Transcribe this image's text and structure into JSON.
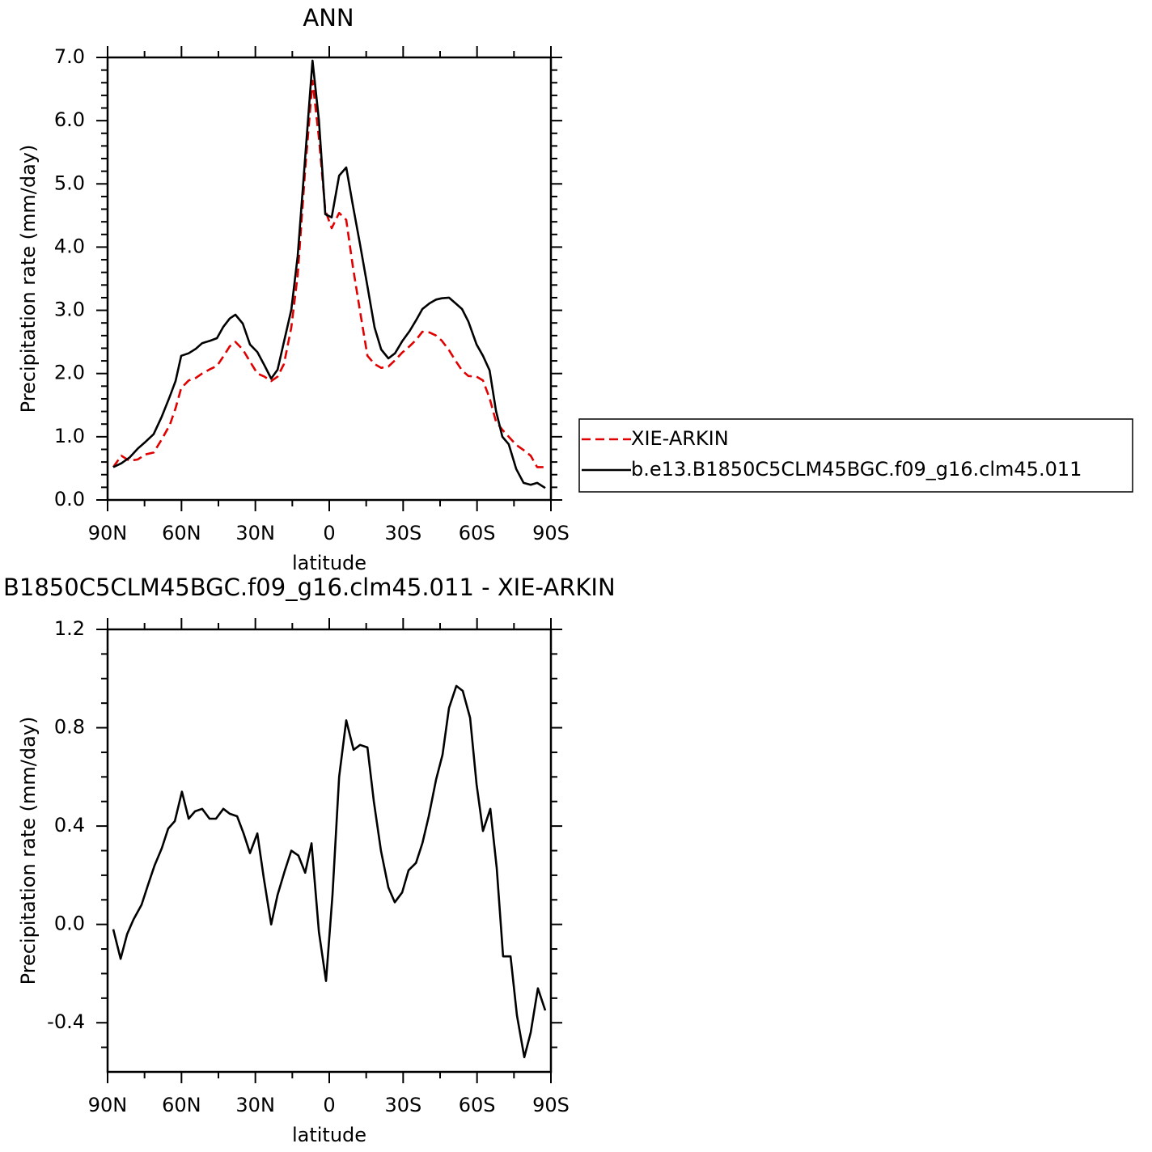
{
  "chart_data": [
    {
      "type": "line",
      "title": "ANN",
      "xlabel": "latitude",
      "ylabel": "Precipitation rate (mm/day)",
      "x": [
        87.7,
        84.4,
        81.1,
        77.8,
        74.6,
        71.3,
        68.0,
        64.7,
        62.4,
        60.1,
        57.1,
        54.2,
        51.6,
        48.3,
        45.6,
        43.0,
        40.4,
        38.1,
        35.1,
        32.2,
        29.2,
        26.3,
        23.6,
        21.0,
        18.4,
        15.4,
        12.8,
        9.8,
        6.8,
        4.2,
        1.6,
        -1.0,
        -4.0,
        -6.9,
        -9.6,
        -12.5,
        -15.5,
        -18.4,
        -21.1,
        -24.0,
        -26.7,
        -29.6,
        -32.6,
        -35.2,
        -37.8,
        -40.7,
        -43.4,
        -45.7,
        -48.6,
        -51.3,
        -53.9,
        -56.5,
        -59.8,
        -62.4,
        -65.1,
        -67.7,
        -70.3,
        -72.9,
        -75.9,
        -78.9,
        -81.8,
        -84.4,
        -87.7
      ],
      "series": [
        {
          "name": "XIE-ARKIN",
          "color": "#e00000",
          "dashed": true,
          "values": [
            0.52,
            0.7,
            0.62,
            0.64,
            0.72,
            0.75,
            0.96,
            1.19,
            1.45,
            1.77,
            1.89,
            1.93,
            2.0,
            2.07,
            2.12,
            2.27,
            2.43,
            2.5,
            2.38,
            2.19,
            2.0,
            1.95,
            1.88,
            1.95,
            2.15,
            2.73,
            3.56,
            5.22,
            6.63,
            5.73,
            4.58,
            4.3,
            4.54,
            4.43,
            3.69,
            2.98,
            2.28,
            2.15,
            2.09,
            2.11,
            2.21,
            2.33,
            2.43,
            2.53,
            2.66,
            2.65,
            2.6,
            2.52,
            2.37,
            2.2,
            2.05,
            1.96,
            1.95,
            1.89,
            1.61,
            1.24,
            1.11,
            1.0,
            0.87,
            0.79,
            0.7,
            0.52,
            0.52
          ]
        },
        {
          "name": "b.e13.B1850C5CLM45BGC.f09_g16.clm45.011",
          "color": "#000000",
          "dashed": false,
          "values": [
            0.52,
            0.58,
            0.67,
            0.81,
            0.92,
            1.04,
            1.32,
            1.64,
            1.88,
            2.28,
            2.32,
            2.39,
            2.48,
            2.52,
            2.56,
            2.74,
            2.87,
            2.93,
            2.79,
            2.46,
            2.34,
            2.13,
            1.92,
            2.06,
            2.5,
            3.01,
            3.86,
            5.41,
            6.95,
            6.01,
            4.52,
            4.47,
            5.13,
            5.26,
            4.66,
            4.04,
            3.38,
            2.73,
            2.38,
            2.24,
            2.32,
            2.51,
            2.67,
            2.84,
            3.02,
            3.11,
            3.17,
            3.19,
            3.2,
            3.11,
            3.02,
            2.82,
            2.46,
            2.28,
            2.05,
            1.41,
            1.0,
            0.88,
            0.49,
            0.27,
            0.24,
            0.27,
            0.19
          ]
        }
      ],
      "xlim": [
        90,
        -90
      ],
      "xticks": [
        {
          "value": 90,
          "label": "90N"
        },
        {
          "value": 60,
          "label": "60N"
        },
        {
          "value": 30,
          "label": "30N"
        },
        0,
        {
          "value": -30,
          "label": "30S"
        },
        {
          "value": -60,
          "label": "60S"
        },
        {
          "value": -90,
          "label": "90S"
        }
      ],
      "xminorticks": [
        75,
        45,
        15,
        -15,
        -45,
        -75
      ],
      "ylim": [
        0,
        7
      ],
      "yticks": [
        {
          "value": 0,
          "label": "0.0"
        },
        {
          "value": 1,
          "label": "1.0"
        },
        {
          "value": 2,
          "label": "2.0"
        },
        {
          "value": 3,
          "label": "3.0"
        },
        {
          "value": 4,
          "label": "4.0"
        },
        {
          "value": 5,
          "label": "5.0"
        },
        {
          "value": 6,
          "label": "6.0"
        },
        {
          "value": 7,
          "label": "7.0"
        }
      ],
      "yminorticks": [
        0.2,
        0.4,
        0.6,
        0.8,
        1.2,
        1.4,
        1.6,
        1.8,
        2.2,
        2.4,
        2.6,
        2.8,
        3.2,
        3.4,
        3.6,
        3.8,
        4.2,
        4.4,
        4.6,
        4.8,
        5.2,
        5.4,
        5.6,
        5.8,
        6.2,
        6.4,
        6.6,
        6.8
      ],
      "legend": "outside right"
    },
    {
      "type": "line",
      "title": "B1850C5CLM45BGC.f09_g16.clm45.011 - XIE-ARKIN",
      "xlabel": "latitude",
      "ylabel": "Precipitation rate (mm/day)",
      "x": [
        87.7,
        84.7,
        82.1,
        79.5,
        76.2,
        73.6,
        70.9,
        68.0,
        65.4,
        62.7,
        59.8,
        57.1,
        54.5,
        51.6,
        48.6,
        46.0,
        43.0,
        40.4,
        37.4,
        34.8,
        32.2,
        29.2,
        26.6,
        23.6,
        21.0,
        18.0,
        15.4,
        12.5,
        9.8,
        7.2,
        4.2,
        1.3,
        -1.3,
        -4.0,
        -6.9,
        -9.9,
        -12.5,
        -15.5,
        -18.1,
        -21.0,
        -24.0,
        -26.6,
        -29.6,
        -32.2,
        -35.2,
        -37.8,
        -40.4,
        -43.4,
        -46.0,
        -48.6,
        -51.6,
        -54.2,
        -57.2,
        -59.8,
        -62.4,
        -65.4,
        -68.0,
        -70.6,
        -73.6,
        -76.2,
        -79.2,
        -81.8,
        -84.7,
        -87.7
      ],
      "values": [
        -0.02,
        -0.14,
        -0.04,
        0.02,
        0.08,
        0.16,
        0.24,
        0.31,
        0.39,
        0.42,
        0.54,
        0.43,
        0.46,
        0.47,
        0.43,
        0.43,
        0.47,
        0.45,
        0.44,
        0.37,
        0.29,
        0.37,
        0.19,
        0.0,
        0.12,
        0.22,
        0.3,
        0.28,
        0.21,
        0.33,
        -0.03,
        -0.23,
        0.12,
        0.6,
        0.83,
        0.71,
        0.73,
        0.72,
        0.5,
        0.3,
        0.15,
        0.09,
        0.13,
        0.22,
        0.25,
        0.33,
        0.44,
        0.59,
        0.69,
        0.88,
        0.97,
        0.95,
        0.84,
        0.57,
        0.38,
        0.47,
        0.23,
        -0.13,
        -0.13,
        -0.37,
        -0.54,
        -0.44,
        -0.26,
        -0.35
      ],
      "color": "#000000",
      "xlim": [
        90,
        -90
      ],
      "xticks": [
        {
          "value": 90,
          "label": "90N"
        },
        {
          "value": 60,
          "label": "60N"
        },
        {
          "value": 30,
          "label": "30N"
        },
        0,
        {
          "value": -30,
          "label": "30S"
        },
        {
          "value": -60,
          "label": "60S"
        },
        {
          "value": -90,
          "label": "90S"
        }
      ],
      "xminorticks": [
        75,
        45,
        15,
        -15,
        -45,
        -75
      ],
      "ylim": [
        -0.6,
        1.2
      ],
      "yticks": [
        -0.4,
        {
          "value": 0,
          "label": "0.0"
        },
        0.4,
        0.8,
        1.2
      ],
      "yminorticks": [
        -0.5,
        -0.3,
        -0.2,
        -0.1,
        0.1,
        0.2,
        0.3,
        0.5,
        0.6,
        0.7,
        0.9,
        1.0,
        1.1
      ]
    }
  ]
}
